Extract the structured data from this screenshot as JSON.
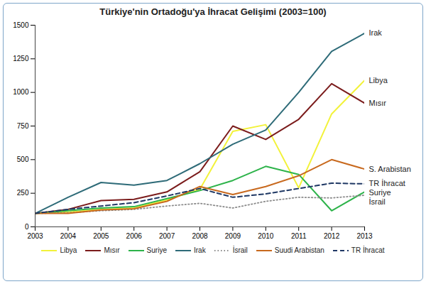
{
  "chart_data": {
    "type": "line",
    "title": "Türkiye'nin Ortadoğu'ya İhracat Gelişimi (2003=100)",
    "x": [
      2003,
      2004,
      2005,
      2006,
      2007,
      2008,
      2009,
      2010,
      2011,
      2012,
      2013
    ],
    "xlim": [
      2003,
      2013
    ],
    "xticks": [
      2003,
      2004,
      2005,
      2006,
      2007,
      2008,
      2009,
      2010,
      2011,
      2012,
      2013
    ],
    "ylim": [
      0,
      1500
    ],
    "yticks": [
      0,
      250,
      500,
      750,
      1000,
      1250,
      1500
    ],
    "grid": false,
    "legend": "bottom",
    "series": [
      {
        "name": "Libya",
        "label": "Libya",
        "color": "#f2f23a",
        "line_style": "solid",
        "values": [
          100,
          110,
          130,
          140,
          200,
          280,
          710,
          760,
          290,
          840,
          1090
        ]
      },
      {
        "name": "Mısır",
        "label": "Mısır",
        "color": "#7b1c1c",
        "line_style": "solid",
        "values": [
          100,
          130,
          195,
          205,
          260,
          410,
          750,
          650,
          800,
          1065,
          920
        ]
      },
      {
        "name": "Suriye",
        "label": "Suriye",
        "color": "#2db34a",
        "line_style": "solid",
        "values": [
          100,
          120,
          140,
          150,
          210,
          270,
          345,
          450,
          390,
          120,
          260
        ]
      },
      {
        "name": "Irak",
        "label": "Irak",
        "color": "#2e6b78",
        "line_style": "solid",
        "values": [
          100,
          220,
          330,
          310,
          345,
          470,
          615,
          720,
          1000,
          1305,
          1440
        ]
      },
      {
        "name": "İsrail",
        "label": "İsrail",
        "color": "#8a8a8a",
        "line_style": "dotted",
        "values": [
          100,
          105,
          120,
          130,
          155,
          175,
          140,
          190,
          220,
          215,
          235
        ]
      },
      {
        "name": "Suudi Arabistan",
        "label": "S. Arabistan",
        "color": "#c8691e",
        "line_style": "solid",
        "values": [
          100,
          100,
          125,
          135,
          190,
          300,
          240,
          300,
          380,
          500,
          430
        ]
      },
      {
        "name": "TR İhracat",
        "label": "TR İhracat",
        "color": "#1f3864",
        "line_style": "dashed",
        "values": [
          100,
          130,
          155,
          180,
          230,
          285,
          220,
          245,
          285,
          325,
          320
        ]
      }
    ]
  }
}
